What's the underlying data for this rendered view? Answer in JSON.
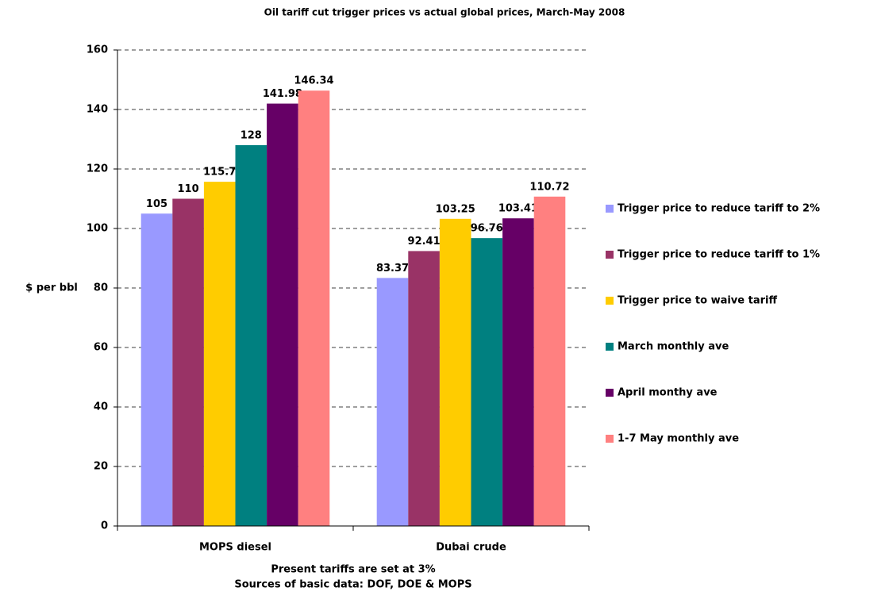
{
  "chart_data": {
    "type": "bar",
    "title": "Oil tariff cut trigger prices vs actual global prices, March-May 2008",
    "ylabel": "$ per bbl",
    "xlabel": [
      "Present tariffs are set at 3%",
      "Sources of basic data: DOF, DOE & MOPS"
    ],
    "categories": [
      "MOPS diesel",
      "Dubai crude"
    ],
    "series": [
      {
        "name": "Trigger price to reduce tariff to 2%",
        "color": "#9999ff",
        "values": [
          105,
          83.37
        ]
      },
      {
        "name": "Trigger price to reduce tariff to 1%",
        "color": "#993366",
        "values": [
          110,
          92.41
        ]
      },
      {
        "name": "Trigger price to waive tariff",
        "color": "#ffcc00",
        "values": [
          115.7,
          103.25
        ]
      },
      {
        "name": "March monthly ave",
        "color": "#008080",
        "values": [
          128,
          96.76
        ]
      },
      {
        "name": "April monthy ave",
        "color": "#660066",
        "values": [
          141.98,
          103.41
        ]
      },
      {
        "name": "1-7 May monthly ave",
        "color": "#ff8080",
        "values": [
          146.34,
          110.72
        ]
      }
    ],
    "ylim": [
      0,
      160
    ],
    "yticks": [
      0,
      20,
      40,
      60,
      80,
      100,
      120,
      140,
      160
    ],
    "grid": true,
    "legend": "right"
  }
}
